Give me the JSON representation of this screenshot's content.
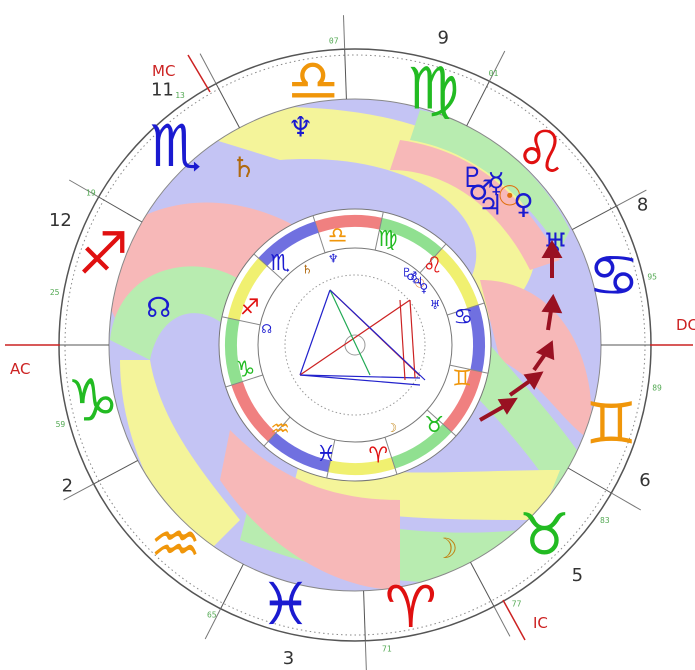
{
  "angles": {
    "ac": "AC",
    "dc": "DC",
    "mc": "MC",
    "ic": "IC"
  },
  "houses": [
    {
      "num": "12",
      "angle": 203
    },
    {
      "num": "11",
      "angle": 233
    },
    {
      "num": "9",
      "angle": 286
    },
    {
      "num": "8",
      "angle": 334
    },
    {
      "num": "6",
      "angle": 25
    },
    {
      "num": "5",
      "angle": 46
    },
    {
      "num": "3",
      "angle": 102
    },
    {
      "num": "2",
      "angle": 154
    }
  ],
  "degree_labels": [
    {
      "text": "07",
      "angle": 266
    },
    {
      "text": "01",
      "angle": 297
    },
    {
      "text": "95",
      "angle": 347
    },
    {
      "text": "89",
      "angle": 8
    },
    {
      "text": "83",
      "angle": 35
    },
    {
      "text": "77",
      "angle": 58
    },
    {
      "text": "71",
      "angle": 84
    },
    {
      "text": "65",
      "angle": 118
    },
    {
      "text": "59",
      "angle": 165
    },
    {
      "text": "25",
      "angle": 190
    },
    {
      "text": "19",
      "angle": 210
    },
    {
      "text": "13",
      "angle": 235
    }
  ],
  "zodiac_outer": [
    {
      "name": "libra",
      "symbol": "♎",
      "color": "#f0960a",
      "angle": 261
    },
    {
      "name": "virgo",
      "symbol": "♍",
      "color": "#22bb22",
      "angle": 287
    },
    {
      "name": "leo",
      "symbol": "♌",
      "color": "#e01010",
      "angle": 314
    },
    {
      "name": "cancer",
      "symbol": "♋",
      "color": "#1a1ad0",
      "angle": 345
    },
    {
      "name": "gemini",
      "symbol": "♊",
      "color": "#f0960a",
      "angle": 17
    },
    {
      "name": "taurus",
      "symbol": "♉",
      "color": "#22bb22",
      "angle": 45
    },
    {
      "name": "aries",
      "symbol": "♈",
      "color": "#e01010",
      "angle": 78
    },
    {
      "name": "pisces",
      "symbol": "♓",
      "color": "#1a1ad0",
      "angle": 105
    },
    {
      "name": "aquarius",
      "symbol": "♒",
      "color": "#f0960a",
      "angle": 132
    },
    {
      "name": "capricorn",
      "symbol": "♑",
      "color": "#22bb22",
      "angle": 168
    },
    {
      "name": "sagittarius",
      "symbol": "♐",
      "color": "#e01010",
      "angle": 200
    },
    {
      "name": "scorpio",
      "symbol": "♏",
      "color": "#1a1ad0",
      "angle": 228
    }
  ],
  "planets": [
    {
      "name": "neptune",
      "symbol": "♆",
      "color": "#1a1ad0",
      "angle": 256
    },
    {
      "name": "saturn",
      "symbol": "♄",
      "color": "#b06a10",
      "angle": 238
    },
    {
      "name": "north-node",
      "symbol": "☊",
      "color": "#1a1ad0",
      "angle": 191
    },
    {
      "name": "mercury",
      "symbol": "☿",
      "color": "#1a1ad0",
      "angle": 311
    },
    {
      "name": "sun",
      "symbol": "☉",
      "color": "#e07010",
      "angle": 316
    },
    {
      "name": "venus",
      "symbol": "♀",
      "color": "#1a1ad0",
      "angle": 320
    },
    {
      "name": "mars",
      "symbol": "♂",
      "color": "#1a1ad0",
      "angle": 309
    },
    {
      "name": "jupiter",
      "symbol": "♃",
      "color": "#1a1ad0",
      "angle": 314
    },
    {
      "name": "uranus",
      "symbol": "♅",
      "color": "#1a1ad0",
      "angle": 333
    },
    {
      "name": "pluto",
      "symbol": "♇",
      "color": "#1a1ad0",
      "angle": 305
    },
    {
      "name": "moon",
      "symbol": "☽",
      "color": "#c08010",
      "angle": 66
    }
  ],
  "colors": {
    "fire": "#f7b8b8",
    "earth": "#b8ecb0",
    "air": "#f4f49a",
    "water": "#c4c4f4",
    "red": "#cc2222",
    "aspect_red": "#cc2222",
    "aspect_blue": "#2222cc",
    "aspect_green": "#22aa55"
  }
}
